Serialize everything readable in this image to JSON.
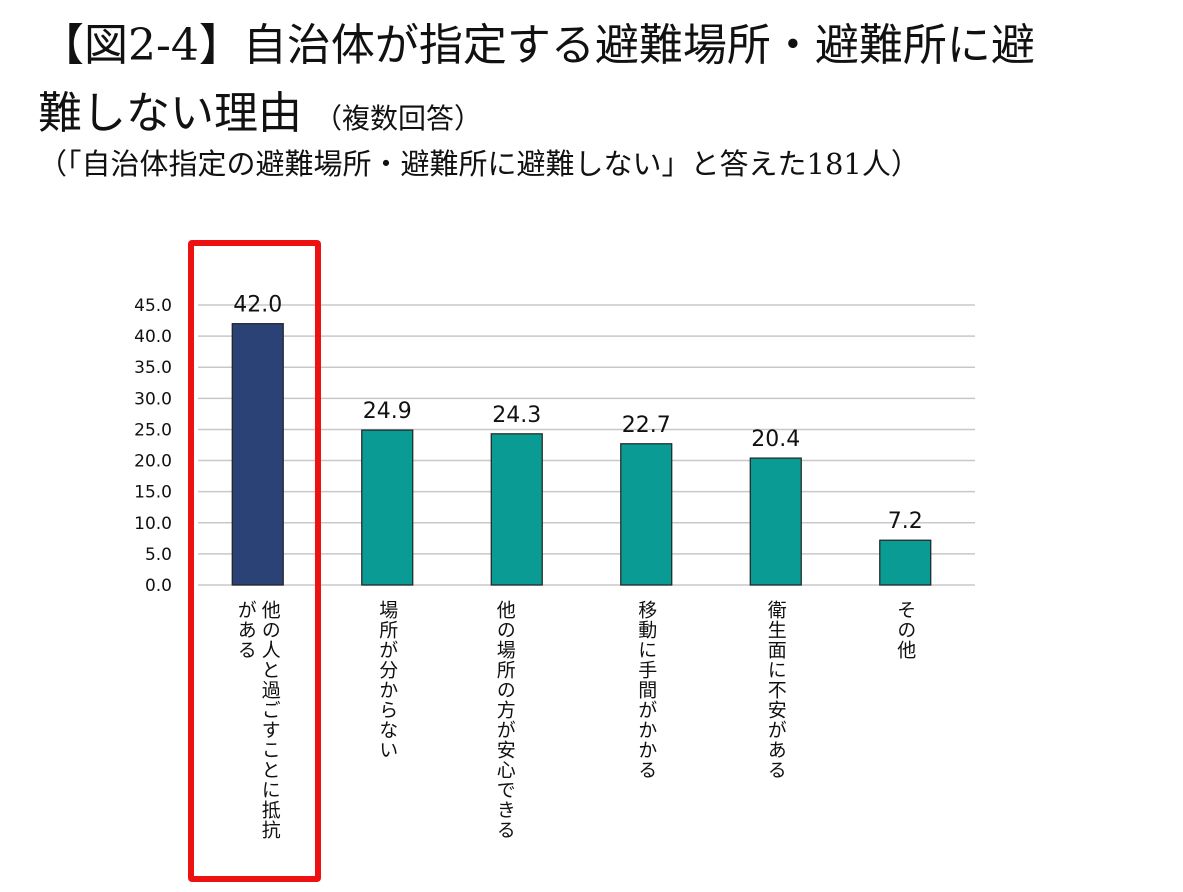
{
  "title_line1": "【図2-4】自治体が指定する避難場所・避難所に避",
  "title_line2": "難しない理由",
  "title_note": "（複数回答）",
  "subtitle": "（「自治体指定の避難場所・避難所に避難しない」と答えた181人）",
  "colors": {
    "highlight_bar": "#2a4275",
    "bar": "#0a9b95",
    "highlight_box": "#ee1111",
    "grid": "#c8c8c8"
  },
  "chart_data": {
    "type": "bar",
    "categories": [
      "他の人と過ごすことに抵抗がある",
      "場所が分からない",
      "他の場所の方が安心できる",
      "移動に手間がかかる",
      "衛生面に不安がある",
      "その他"
    ],
    "values": [
      42.0,
      24.9,
      24.3,
      22.7,
      20.4,
      7.2
    ],
    "value_labels": [
      "42.0",
      "24.9",
      "24.3",
      "22.7",
      "20.4",
      "7.2"
    ],
    "yticks": [
      "0.0",
      "5.0",
      "10.0",
      "15.0",
      "20.0",
      "25.0",
      "30.0",
      "35.0",
      "40.0",
      "45.0"
    ],
    "ylim": [
      0,
      45
    ],
    "grid": true,
    "highlighted_index": 0
  }
}
